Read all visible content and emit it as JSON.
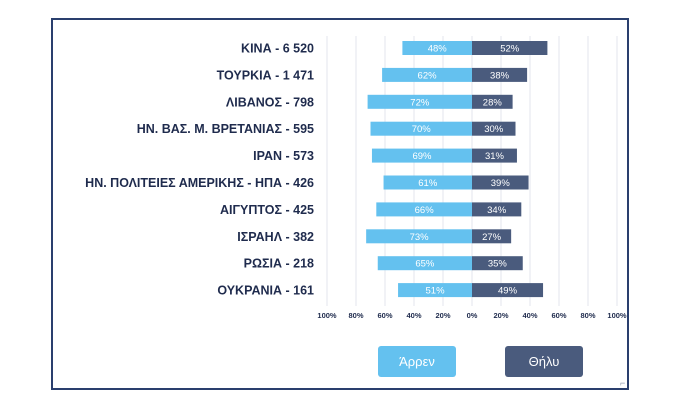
{
  "chart_data": {
    "type": "bar",
    "subtype": "diverging-horizontal-100pct",
    "categories": [
      "ΚΙΝΑ - 6 520",
      "ΤΟΥΡΚΙΑ - 1 471",
      "ΛΙΒΑΝΟΣ -  798",
      "ΗΝ. ΒΑΣ. Μ. ΒΡΕΤΑΝΙΑΣ -  595",
      "ΙΡΑΝ -  573",
      "ΗΝ. ΠΟΛΙΤΕΙΕΣ ΑΜΕΡΙΚΗΣ - ΗΠΑ -  426",
      "ΑΙΓΥΠΤΟΣ -  425",
      "ΙΣΡΑΗΛ -  382",
      "ΡΩΣΙΑ -  218",
      "ΟΥΚΡΑΝΙΑ -  161"
    ],
    "series": [
      {
        "name": "Άρρεν",
        "color": "#64c1ef",
        "values": [
          48,
          62,
          72,
          70,
          69,
          61,
          66,
          73,
          65,
          51
        ]
      },
      {
        "name": "Θήλυ",
        "color": "#4a5b7d",
        "values": [
          52,
          38,
          28,
          30,
          31,
          39,
          34,
          27,
          35,
          49
        ]
      }
    ],
    "xlim": [
      -100,
      100
    ],
    "xticks": [
      -100,
      -80,
      -60,
      -40,
      -20,
      0,
      20,
      40,
      60,
      80,
      100
    ],
    "xtick_labels": [
      "100%",
      "80%",
      "60%",
      "40%",
      "20%",
      "0%",
      "20%",
      "40%",
      "60%",
      "80%",
      "100%"
    ],
    "grid": true,
    "legend": "bottom"
  },
  "legend": {
    "male_label": "Άρρεν",
    "female_label": "Θήλυ"
  },
  "colors": {
    "male": "#64c1ef",
    "female": "#4a5b7d",
    "frame": "#2a3f6e",
    "label_text": "#1f2b4d",
    "grid": "#e3e6ec"
  }
}
